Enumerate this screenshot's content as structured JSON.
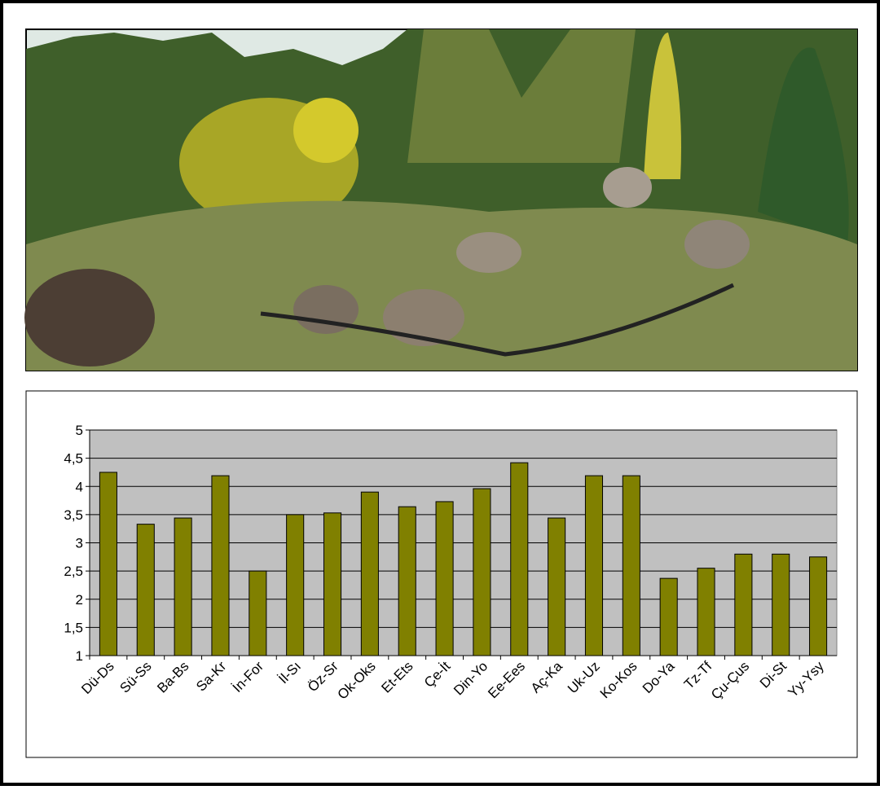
{
  "chart_data": {
    "type": "bar",
    "categories": [
      "Dü-Ds",
      "Sü-Ss",
      "Ba-Bs",
      "Sa-Kr",
      "İn-For",
      "İl-Sı",
      "Öz-Sr",
      "Ok-Oks",
      "Et-Ets",
      "Çe-İt",
      "Din-Yo",
      "Ee-Ees",
      "Aç-Ka",
      "Uk-Uz",
      "Ko-Kos",
      "Do-Ya",
      "Tz-Tf",
      "Çu-Çus",
      "Di-St",
      "Yy-Ysy"
    ],
    "values": [
      4.25,
      3.33,
      3.44,
      4.19,
      2.5,
      3.5,
      3.53,
      3.9,
      3.64,
      3.73,
      3.96,
      4.42,
      3.44,
      4.19,
      4.19,
      2.37,
      2.55,
      2.8,
      2.8,
      2.75
    ],
    "color": "#808000",
    "ylim": [
      1,
      5
    ],
    "yticks": [
      1,
      {
        "value": 1.5,
        "label": "1,5"
      },
      2,
      {
        "value": 2.5,
        "label": "2,5"
      },
      3,
      {
        "value": 3.5,
        "label": "3,5"
      },
      4,
      {
        "value": 4.5,
        "label": "4,5"
      },
      5
    ],
    "grid": true
  }
}
